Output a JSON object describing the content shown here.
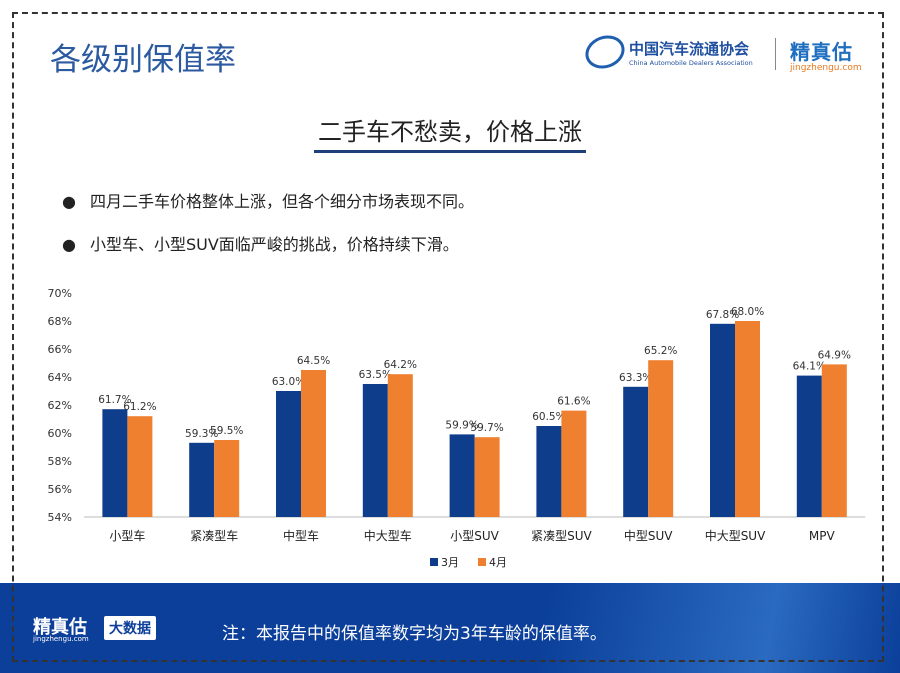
{
  "header": {
    "title": "各级别保值率",
    "association_cn": "中国汽车流通协会",
    "association_en": "China Automobile Dealers Association",
    "association_logo": "CADA",
    "brand": "精真估",
    "brand_url": "jingzhengu.com"
  },
  "subtitle": "二手车不愁卖，价格上涨",
  "bullets": [
    "四月二手车价格整体上涨，但各个细分市场表现不同。",
    "小型车、小型SUV面临严峻的挑战，价格持续下滑。"
  ],
  "chart_data": {
    "type": "bar",
    "categories": [
      "小型车",
      "紧凑型车",
      "中型车",
      "中大型车",
      "小型SUV",
      "紧凑型SUV",
      "中型SUV",
      "中大型SUV",
      "MPV"
    ],
    "series": [
      {
        "name": "3月",
        "color": "#0e3d8c",
        "values": [
          61.7,
          59.3,
          63.0,
          63.5,
          59.9,
          60.5,
          63.3,
          67.8,
          64.1
        ]
      },
      {
        "name": "4月",
        "color": "#ee8030",
        "values": [
          61.2,
          59.5,
          64.5,
          64.2,
          59.7,
          61.6,
          65.2,
          68.0,
          64.9
        ]
      }
    ],
    "ylim": [
      54,
      70
    ],
    "yticks": [
      "54%",
      "56%",
      "58%",
      "60%",
      "62%",
      "64%",
      "66%",
      "68%",
      "70%"
    ],
    "legend": "bottom",
    "grid": false
  },
  "footer": {
    "brand": "精真估",
    "brand_url": "jingzhengu.com",
    "badge": "大数据",
    "note": "注：本报告中的保值率数字均为3年车龄的保值率。"
  }
}
